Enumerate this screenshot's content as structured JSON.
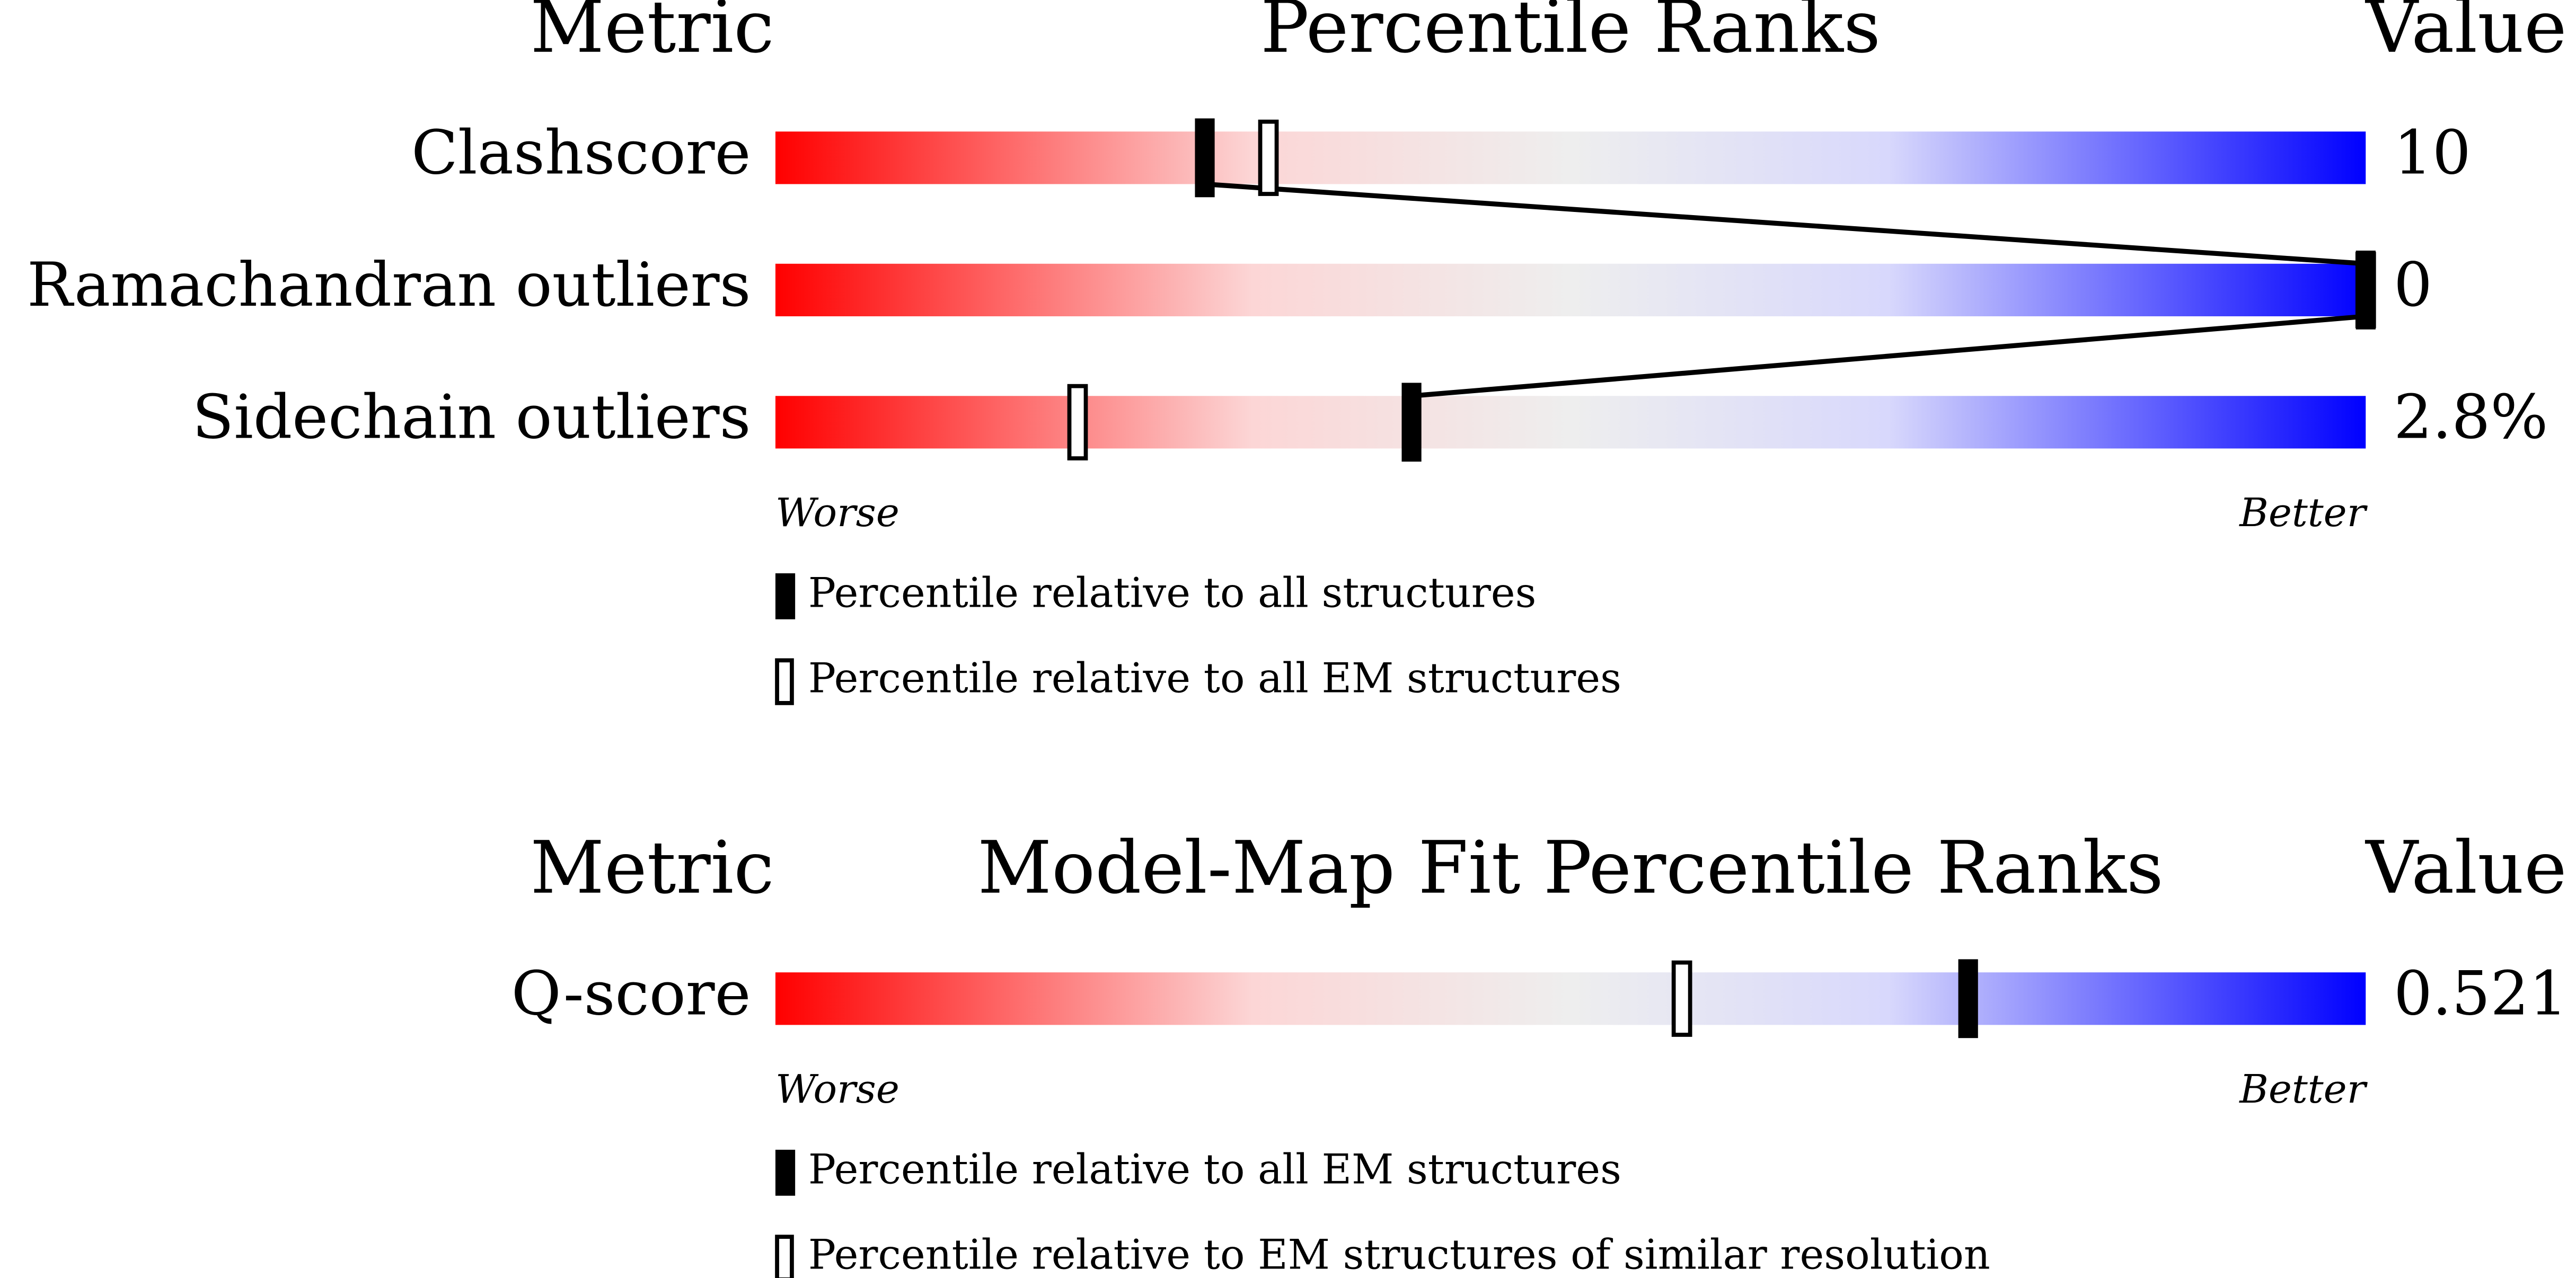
{
  "chart_data": [
    {
      "type": "percentile",
      "headers": {
        "metric": "Metric",
        "title": "Percentile Ranks",
        "value": "Value"
      },
      "categories": [
        "Clashscore",
        "Ramachandran outliers",
        "Sidechain outliers"
      ],
      "metric_values": [
        "10",
        "0",
        "2.8%"
      ],
      "xlim": [
        0,
        100
      ],
      "axis_labels": {
        "left": "Worse",
        "right": "Better"
      },
      "series": [
        {
          "name": "Percentile relative to all structures",
          "style": "filled",
          "color": "#000000",
          "values": [
            27,
            100,
            40
          ]
        },
        {
          "name": "Percentile relative to all EM structures",
          "style": "hollow",
          "color": "#000000",
          "values": [
            31,
            100,
            19
          ]
        }
      ]
    },
    {
      "type": "percentile",
      "headers": {
        "metric": "Metric",
        "title": "Model-Map Fit Percentile Ranks",
        "value": "Value"
      },
      "categories": [
        "Q-score"
      ],
      "metric_values": [
        "0.521"
      ],
      "xlim": [
        0,
        100
      ],
      "axis_labels": {
        "left": "Worse",
        "right": "Better"
      },
      "series": [
        {
          "name": "Percentile relative to all EM structures",
          "style": "filled",
          "color": "#000000",
          "values": [
            75
          ]
        },
        {
          "name": "Percentile relative to EM structures of similar resolution",
          "style": "hollow",
          "color": "#000000",
          "values": [
            57
          ]
        }
      ]
    }
  ]
}
